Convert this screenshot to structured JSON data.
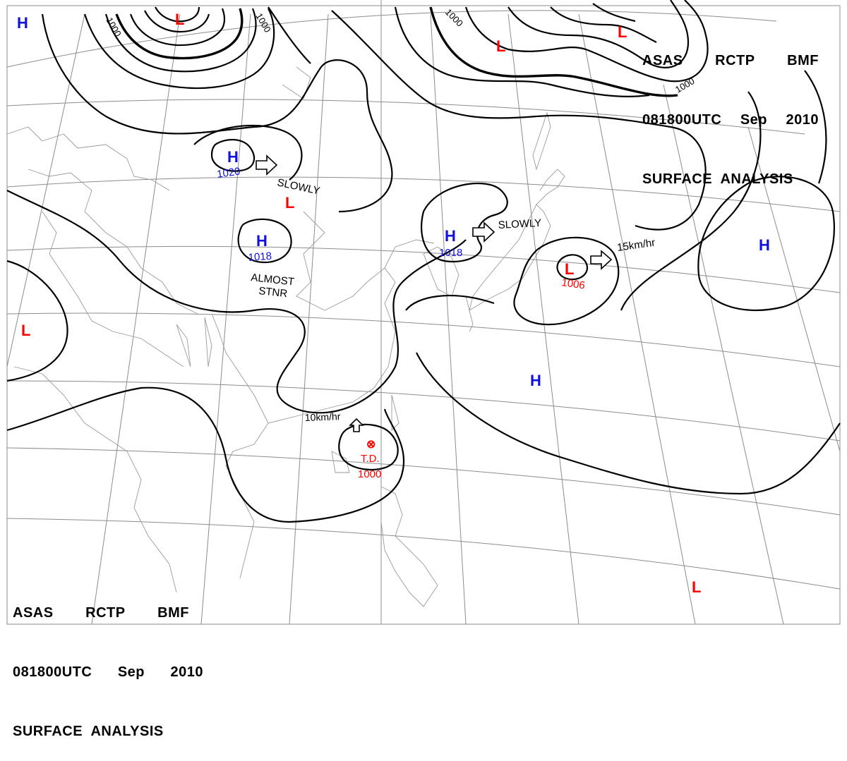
{
  "header_top": {
    "line1": [
      "ASAS",
      "RCTP",
      "BMF"
    ],
    "line2": [
      "081800UTC",
      "Sep",
      "2010"
    ],
    "line3": "SURFACE  ANALYSIS"
  },
  "header_bottom": {
    "line1": [
      "ASAS",
      "RCTP",
      "BMF"
    ],
    "line2": [
      "081800UTC",
      "Sep",
      "2010"
    ],
    "line3": "SURFACE  ANALYSIS"
  },
  "colors": {
    "high": "#1010e0",
    "low": "#ff0000",
    "isobar": "#000000",
    "grid": "#8c8c8c",
    "coast": "#9a9a9a"
  },
  "systems": [
    {
      "id": "h-topleft",
      "type": "H",
      "pressure": ""
    },
    {
      "id": "l-top",
      "type": "L",
      "pressure": ""
    },
    {
      "id": "h-1020",
      "type": "H",
      "pressure": "1020"
    },
    {
      "id": "l-mongolia",
      "type": "L",
      "pressure": ""
    },
    {
      "id": "h-1018-west",
      "type": "H",
      "pressure": "1018"
    },
    {
      "id": "l-westedge",
      "type": "L",
      "pressure": ""
    },
    {
      "id": "h-1018-korea",
      "type": "H",
      "pressure": "1018"
    },
    {
      "id": "l-1006",
      "type": "L",
      "pressure": "1006"
    },
    {
      "id": "h-east",
      "type": "H",
      "pressure": ""
    },
    {
      "id": "h-pacific",
      "type": "H",
      "pressure": ""
    },
    {
      "id": "l-topright-1",
      "type": "L",
      "pressure": ""
    },
    {
      "id": "l-topright-2",
      "type": "L",
      "pressure": ""
    },
    {
      "id": "l-bottomright",
      "type": "L",
      "pressure": ""
    }
  ],
  "tropical_depression": {
    "label": "T.D.",
    "pressure": "1000",
    "symbol": "⊗"
  },
  "motion_labels": {
    "h1020": "SLOWLY",
    "h1018_west_line1": "ALMOST",
    "h1018_west_line2": "STNR",
    "h1018_korea": "SLOWLY",
    "l1006": "15km/hr",
    "td": "10km/hr"
  },
  "isobar_labels": [
    "1000",
    "1000",
    "1000",
    "1000"
  ]
}
